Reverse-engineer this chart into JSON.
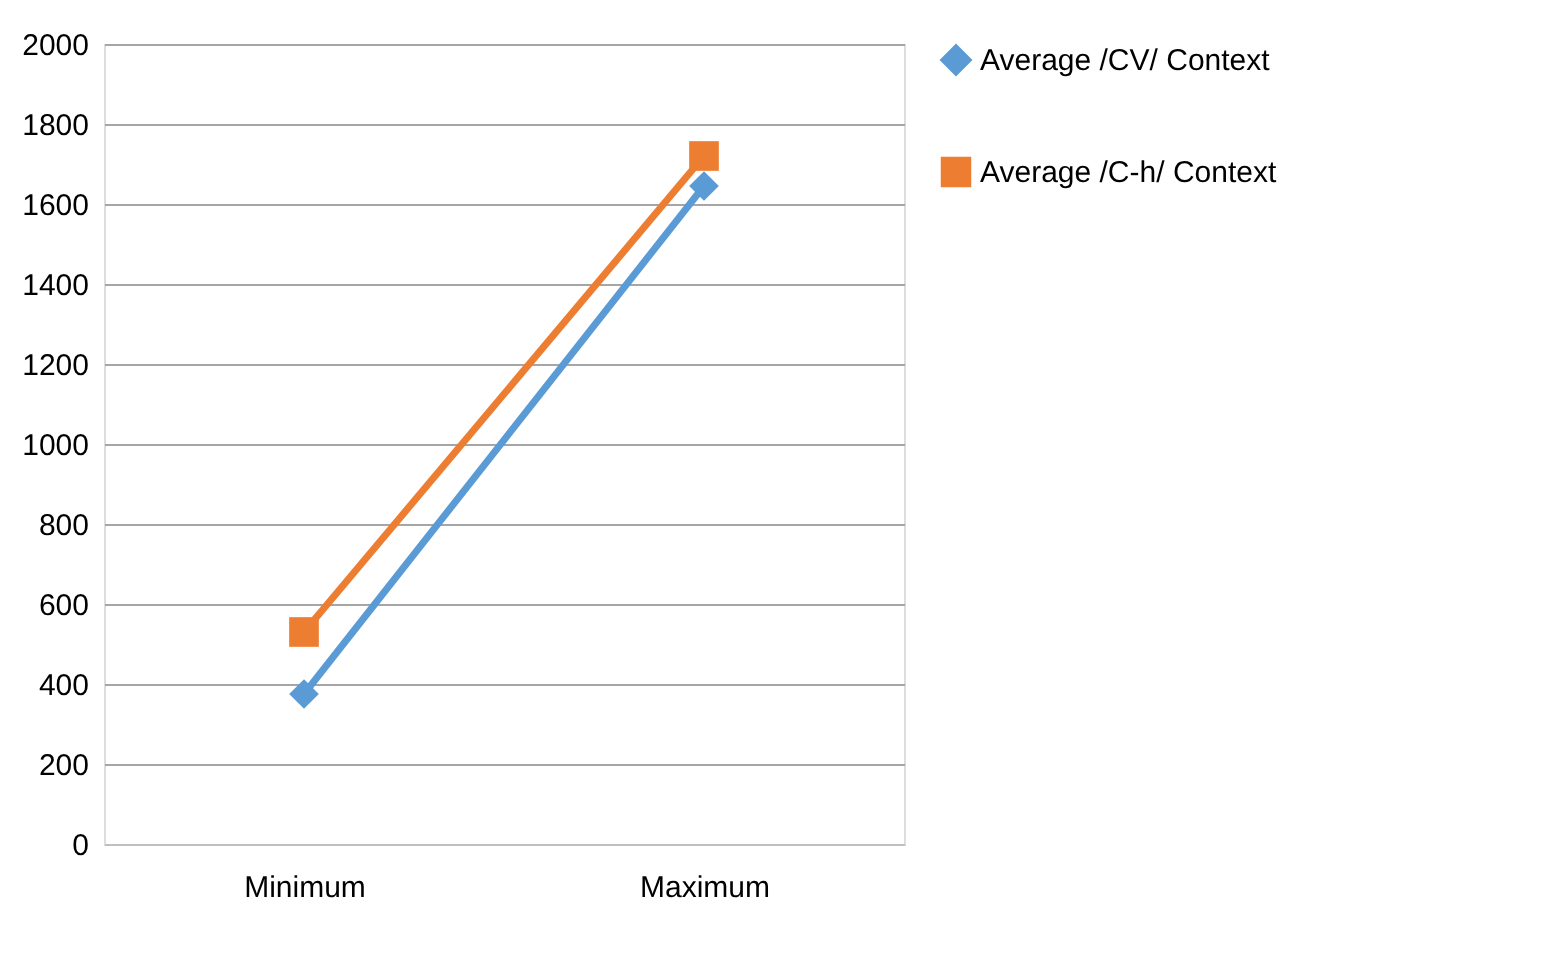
{
  "chart_data": {
    "type": "line",
    "categories": [
      "Minimum",
      "Maximum"
    ],
    "series": [
      {
        "name": "Average /CV/ Context",
        "color": "#5b9bd5",
        "marker": "diamond",
        "values": [
          375,
          1645
        ]
      },
      {
        "name": "Average /C-h/ Context",
        "color": "#ed7d31",
        "marker": "square",
        "values": [
          530,
          1720
        ]
      }
    ],
    "ylim": [
      0,
      2000
    ],
    "yticks": [
      0,
      200,
      400,
      600,
      800,
      1000,
      1200,
      1400,
      1600,
      1800,
      2000
    ],
    "grid": "y",
    "legend": "right"
  }
}
